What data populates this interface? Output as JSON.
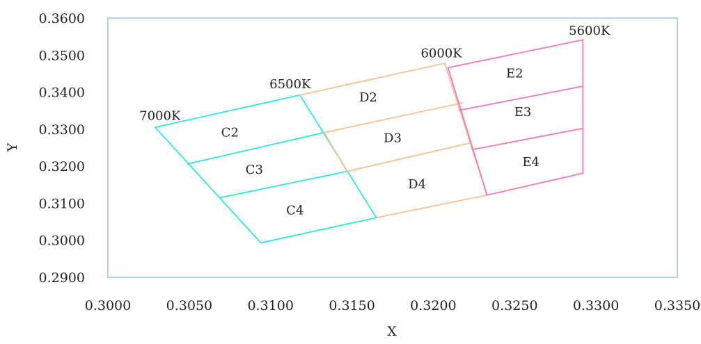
{
  "chart_data": {
    "type": "line",
    "xlabel": "X",
    "ylabel": "Y",
    "xlim": [
      0.3,
      0.335
    ],
    "ylim": [
      0.29,
      0.36
    ],
    "x_ticks": [
      "0.3000",
      "0.3050",
      "0.3100",
      "0.3150",
      "0.3200",
      "0.3250",
      "0.3300",
      "0.3350"
    ],
    "y_ticks": [
      "0.2900",
      "0.3000",
      "0.3100",
      "0.3200",
      "0.3300",
      "0.3400",
      "0.3500",
      "0.3600"
    ],
    "frame_color": "#9fc8ee",
    "groups": [
      {
        "name": "C",
        "color": "#2ee6e6",
        "lines": [
          [
            [
              0.3029,
              0.3305
            ],
            [
              0.3118,
              0.3392
            ]
          ],
          [
            [
              0.3049,
              0.3206
            ],
            [
              0.3133,
              0.3291
            ]
          ],
          [
            [
              0.3069,
              0.3115
            ],
            [
              0.3147,
              0.3186
            ]
          ],
          [
            [
              0.3094,
              0.2993
            ],
            [
              0.3165,
              0.3061
            ]
          ],
          [
            [
              0.3029,
              0.3305
            ],
            [
              0.3094,
              0.2993
            ]
          ],
          [
            [
              0.3118,
              0.3392
            ],
            [
              0.3165,
              0.3061
            ]
          ]
        ]
      },
      {
        "name": "D",
        "color": "#f7c08f",
        "lines": [
          [
            [
              0.3118,
              0.3392
            ],
            [
              0.3207,
              0.3478
            ]
          ],
          [
            [
              0.3133,
              0.3291
            ],
            [
              0.3218,
              0.3371
            ]
          ],
          [
            [
              0.3147,
              0.3186
            ],
            [
              0.3222,
              0.3262
            ]
          ],
          [
            [
              0.3165,
              0.3061
            ],
            [
              0.3233,
              0.3122
            ]
          ],
          [
            [
              0.3133,
              0.3291
            ],
            [
              0.3147,
              0.3186
            ]
          ],
          [
            [
              0.3207,
              0.3478
            ],
            [
              0.3233,
              0.3122
            ]
          ]
        ]
      },
      {
        "name": "E",
        "color": "#f07ab9",
        "lines": [
          [
            [
              0.3209,
              0.3466
            ],
            [
              0.3292,
              0.3541
            ]
          ],
          [
            [
              0.3216,
              0.3351
            ],
            [
              0.3292,
              0.3416
            ]
          ],
          [
            [
              0.3224,
              0.3245
            ],
            [
              0.3292,
              0.3302
            ]
          ],
          [
            [
              0.3233,
              0.3122
            ],
            [
              0.3292,
              0.3181
            ]
          ],
          [
            [
              0.3292,
              0.3541
            ],
            [
              0.3292,
              0.3181
            ]
          ],
          [
            [
              0.3209,
              0.3466
            ],
            [
              0.3233,
              0.3122
            ]
          ]
        ]
      }
    ],
    "region_labels": [
      {
        "text": "C2",
        "x": 0.3075,
        "y": 0.328
      },
      {
        "text": "C3",
        "x": 0.309,
        "y": 0.318
      },
      {
        "text": "C4",
        "x": 0.3115,
        "y": 0.307
      },
      {
        "text": "D2",
        "x": 0.316,
        "y": 0.3375
      },
      {
        "text": "D3",
        "x": 0.3175,
        "y": 0.3265
      },
      {
        "text": "D4",
        "x": 0.319,
        "y": 0.314
      },
      {
        "text": "E2",
        "x": 0.325,
        "y": 0.344
      },
      {
        "text": "E3",
        "x": 0.3255,
        "y": 0.3335
      },
      {
        "text": "E4",
        "x": 0.326,
        "y": 0.32
      }
    ],
    "temperature_labels": [
      {
        "text": "7000K",
        "x": 0.3032,
        "y": 0.3325
      },
      {
        "text": "6500K",
        "x": 0.3112,
        "y": 0.341
      },
      {
        "text": "6000K",
        "x": 0.3205,
        "y": 0.3494
      },
      {
        "text": "5600K",
        "x": 0.3296,
        "y": 0.3555
      }
    ]
  }
}
